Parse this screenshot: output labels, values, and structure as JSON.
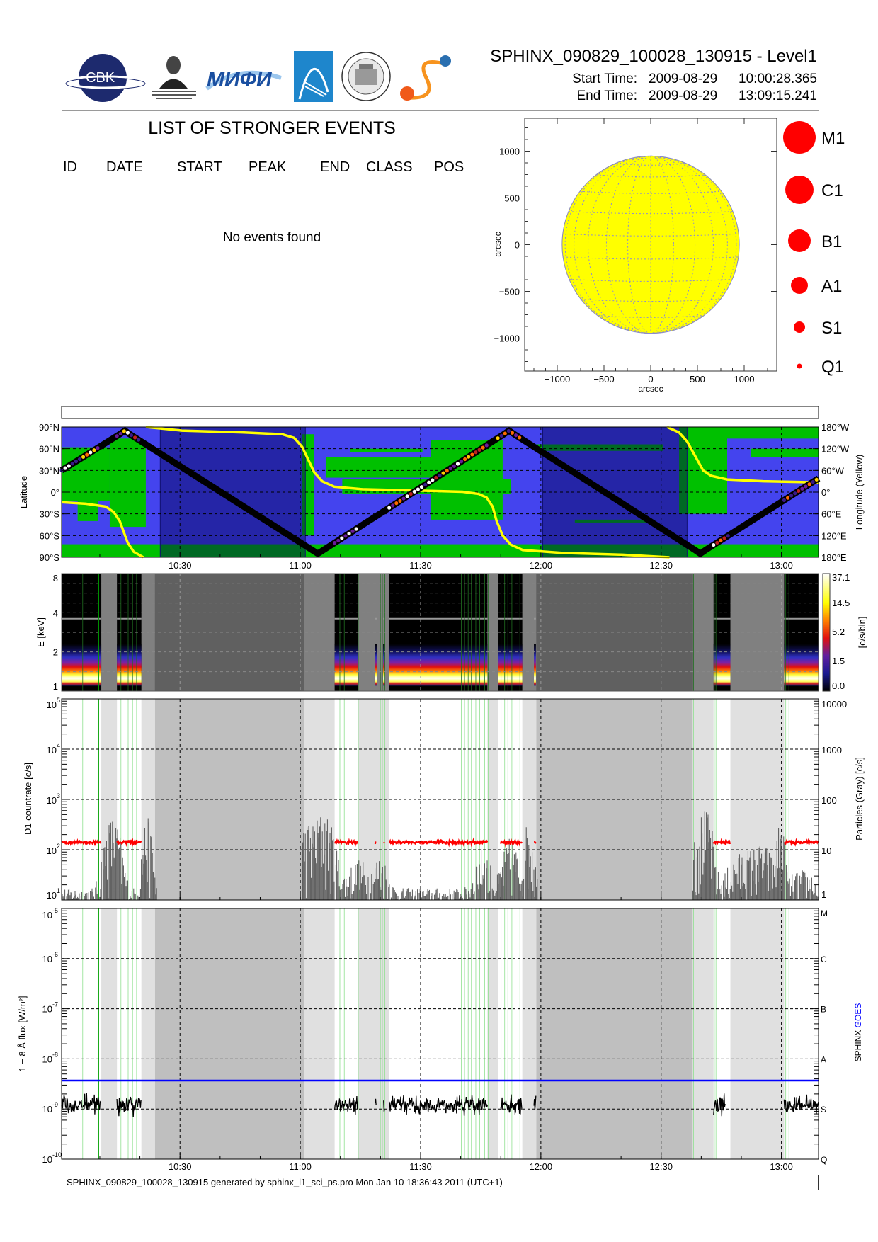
{
  "header": {
    "title": "SPHINX_090829_100028_130915 - Level1",
    "start_label": "Start Time:",
    "start_date": "2009-08-29",
    "start_time": "10:00:28.365",
    "end_label": "End Time:",
    "end_date": "2009-08-29",
    "end_time": "13:09:15.241"
  },
  "logos": {
    "cbk": "CBK PAN",
    "lebedev": "P.N.Lebedev Physical Institute of the Russian Academy of Science",
    "mifi": "МИФИ",
    "seal": "SPECOLA PANORMITANA"
  },
  "events": {
    "title": "LIST OF STRONGER EVENTS",
    "columns": [
      "ID",
      "DATE",
      "START",
      "PEAK",
      "END",
      "CLASS",
      "POS"
    ],
    "rows": [],
    "empty_message": "No events found"
  },
  "footer": "SPHINX_090829_100028_130915 generated by sphinx_l1_sci_ps.pro Mon Jan 10 18:36:43 2011 (UTC+1)",
  "chart_data": {
    "time_axis": {
      "start": "10:00:28",
      "end": "13:09:15",
      "duration_min": 188.78,
      "ticks": [
        {
          "label": "10:30",
          "min": 29.53
        },
        {
          "label": "11:00",
          "min": 59.53
        },
        {
          "label": "11:30",
          "min": 89.53
        },
        {
          "label": "12:00",
          "min": 119.53
        },
        {
          "label": "12:30",
          "min": 149.53
        },
        {
          "label": "13:00",
          "min": 179.53
        }
      ]
    },
    "segments": {
      "data": [
        [
          0,
          9.9
        ],
        [
          13.8,
          19.9
        ],
        [
          68.1,
          73.9
        ],
        [
          81.7,
          106.2
        ],
        [
          108.8,
          114.9
        ],
        [
          162.6,
          166.8
        ],
        [
          180.2,
          188.78
        ]
      ],
      "light_gray": [
        [
          9.9,
          13.8
        ],
        [
          19.9,
          23.3
        ],
        [
          60.4,
          68.1
        ],
        [
          73.9,
          81.7
        ],
        [
          106.2,
          108.8
        ],
        [
          114.9,
          118.4
        ],
        [
          157.4,
          162.6
        ],
        [
          166.8,
          180.2
        ]
      ],
      "dark_gray": [
        [
          23.3,
          60.4
        ],
        [
          118.4,
          157.4
        ]
      ],
      "spectrum_extra": [
        [
          78.2,
          78.6
        ],
        [
          80.2,
          80.7
        ],
        [
          117.8,
          118.3
        ]
      ]
    },
    "green_lines_min": [
      5.26,
      9.2,
      14.8,
      15.8,
      16.6,
      17.7,
      18.7,
      69.4,
      70.5,
      73.2,
      74.0,
      79.5,
      80.0,
      80.6,
      99.7,
      100.5,
      101.4,
      102.2,
      103.3,
      104.3,
      105.5,
      106.4,
      109.6,
      110.5,
      111.3,
      112.3,
      113.1,
      114.3,
      157.6,
      162.8,
      163.2,
      180.6,
      181.4
    ],
    "sun_map": {
      "type": "scatter",
      "xlabel": "arcsec",
      "ylabel": "arcsec",
      "xlim": [
        -1350,
        1350
      ],
      "ylim": [
        -1350,
        1350
      ],
      "ticks": [
        -1000,
        -500,
        0,
        500,
        1000
      ],
      "tick_labels": [
        "−1000",
        "−500",
        "0",
        "500",
        "1000"
      ],
      "disk_radius_arcsec": 948,
      "disk_color": "#ffff00",
      "points": []
    },
    "class_legend": [
      "M1",
      "C1",
      "B1",
      "A1",
      "S1",
      "Q1"
    ],
    "legend_color": "#ff0000",
    "orbit_map": {
      "type": "line",
      "ylabel": "Latitude",
      "y2label": "Longitude (Yellow)",
      "ylim": [
        -90,
        90
      ],
      "ytick_labels": [
        "90°N",
        "60°N",
        "30°N",
        "0°",
        "30°S",
        "60°S",
        "90°S"
      ],
      "y2tick_labels": [
        "180°W",
        "120°W",
        "60°W",
        "0°",
        "60°E",
        "120°E",
        "180°E"
      ],
      "night_intervals": [
        [
          24.6,
          60.8
        ],
        [
          120,
          156
        ]
      ],
      "latitude_track": [
        [
          0,
          30
        ],
        [
          14.5,
          80
        ],
        [
          15.8,
          85
        ],
        [
          17,
          80
        ],
        [
          62.5,
          -80
        ],
        [
          63.9,
          -85
        ],
        [
          65.3,
          -80
        ],
        [
          110.3,
          80
        ],
        [
          111.6,
          85
        ],
        [
          112.9,
          80
        ],
        [
          158,
          -80
        ],
        [
          159.3,
          -85
        ],
        [
          160.6,
          -80
        ],
        [
          188.78,
          19
        ]
      ],
      "longitude_track_east_positive": [
        [
          [
            0,
            28
          ],
          [
            6,
            32
          ],
          [
            11,
            40
          ],
          [
            13,
            55
          ],
          [
            14.5,
            80
          ],
          [
            15.5,
            110
          ],
          [
            16.5,
            140
          ],
          [
            18,
            165
          ],
          [
            20.4,
            180
          ]
        ],
        [
          [
            21,
            -180
          ],
          [
            30,
            -170
          ],
          [
            45,
            -165
          ],
          [
            55,
            -160
          ],
          [
            58,
            -150
          ],
          [
            60,
            -125
          ],
          [
            61.5,
            -90
          ],
          [
            63,
            -55
          ],
          [
            65,
            -30
          ],
          [
            68,
            -15
          ],
          [
            75,
            -8
          ],
          [
            90,
            -4
          ],
          [
            100,
            -1
          ],
          [
            104,
            5
          ],
          [
            106,
            15
          ],
          [
            107.5,
            40
          ],
          [
            108.5,
            80
          ],
          [
            110,
            120
          ],
          [
            112,
            145
          ],
          [
            115,
            160
          ],
          [
            125,
            168
          ],
          [
            140,
            173
          ],
          [
            151.6,
            180
          ]
        ],
        [
          [
            151,
            -180
          ],
          [
            154,
            -165
          ],
          [
            156,
            -140
          ],
          [
            158,
            -100
          ],
          [
            160,
            -60
          ],
          [
            162,
            -45
          ],
          [
            166,
            -35
          ],
          [
            175,
            -30
          ],
          [
            188.78,
            -27
          ]
        ]
      ],
      "colors": {
        "ocean": "#4444ee",
        "land": "#00c000",
        "longitude": "#ffff00",
        "track": "#000000"
      }
    },
    "spectrogram": {
      "type": "heatmap",
      "ylabel": "E  [keV]",
      "yticks": [
        1,
        2,
        4,
        8
      ],
      "ylim": [
        1,
        8
      ],
      "peak_band_kev": [
        1.1,
        2.3
      ],
      "colorbar_label": "[c/s/bin]",
      "colorbar_ticks": [
        "37.1",
        "14.5",
        "5.2",
        "1.5",
        "0.0"
      ]
    },
    "d1": {
      "type": "line",
      "ylabel": "D1  countrate  [c/s]",
      "y2label": "Particles  (Gray)  [c/s]",
      "ylim": [
        10,
        100000
      ],
      "ytick_exponents": [
        "1",
        "2",
        "3",
        "4",
        "5"
      ],
      "y2tick_labels": [
        "1",
        "10",
        "100",
        "1000",
        "10000"
      ],
      "countrate_level": 140,
      "countrate_color": "#ff0000",
      "countrate_intervals": [
        [
          0,
          9.9
        ],
        [
          13.8,
          19.9
        ],
        [
          68.1,
          73.9
        ],
        [
          78.2,
          78.5
        ],
        [
          80.3,
          80.6
        ],
        [
          81.7,
          106.2
        ],
        [
          109.5,
          114.9
        ],
        [
          117.8,
          118.3
        ],
        [
          162.6,
          166.8
        ],
        [
          180.2,
          188.78
        ]
      ],
      "particle_peaks": [
        [
          12.7,
          35,
          2
        ],
        [
          21.4,
          35,
          1.2
        ],
        [
          61,
          25,
          2
        ],
        [
          65.3,
          45,
          2.5
        ],
        [
          74,
          4,
          3
        ],
        [
          79.5,
          5,
          2
        ],
        [
          105,
          8,
          2
        ],
        [
          111.9,
          13,
          2
        ],
        [
          116.5,
          30,
          1.2
        ],
        [
          159,
          30,
          2
        ],
        [
          161,
          35,
          1.5
        ],
        [
          170,
          6,
          4
        ],
        [
          175,
          8,
          3
        ],
        [
          179.3,
          28,
          1
        ],
        [
          185,
          2,
          4
        ]
      ]
    },
    "goes": {
      "type": "line",
      "ylabel": "1 − 8  Å  flux  [W/m²]",
      "y2label_sphinx": "SPHINX",
      "y2label_goes": "GOES",
      "ylim": [
        1e-10,
        1e-05
      ],
      "ytick_exponents": [
        "-10",
        "-9",
        "-8",
        "-7",
        "-6",
        "-5"
      ],
      "class_labels": [
        "Q",
        "S",
        "A",
        "B",
        "C",
        "M"
      ],
      "sphinx_level": 1.2e-09,
      "goes_level": 3.7e-09,
      "sphinx_color": "#000000",
      "goes_color": "#0000ff",
      "sphinx_intervals": [
        [
          0,
          9.9
        ],
        [
          13.8,
          19.9
        ],
        [
          68.1,
          73.9
        ],
        [
          78.2,
          78.5
        ],
        [
          80.3,
          80.6
        ],
        [
          81.7,
          106.2
        ],
        [
          109.5,
          114.9
        ],
        [
          117.8,
          118.3
        ],
        [
          162.6,
          165.6
        ],
        [
          180.2,
          188.78
        ]
      ]
    }
  }
}
